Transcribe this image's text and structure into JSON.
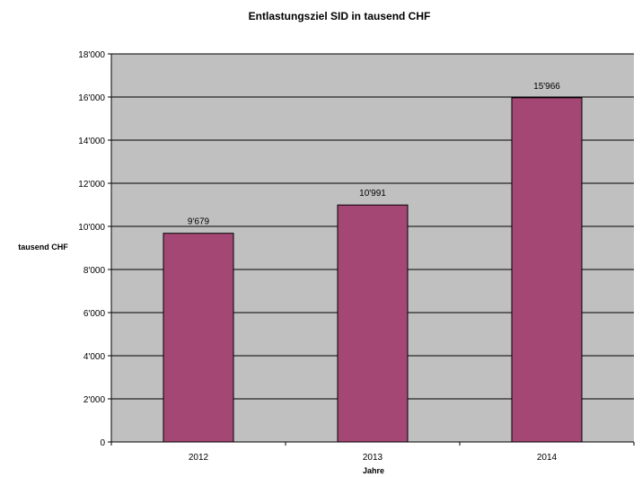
{
  "chart_data": {
    "type": "bar",
    "title": "Entlastungsziel SID in tausend CHF",
    "xlabel": "Jahre",
    "ylabel": "tausend CHF",
    "categories": [
      "2012",
      "2013",
      "2014"
    ],
    "values": [
      9679,
      10991,
      15966
    ],
    "data_labels": [
      "9'679",
      "10'991",
      "15'966"
    ],
    "y_ticks": [
      "0",
      "2'000",
      "4'000",
      "6'000",
      "8'000",
      "10'000",
      "12'000",
      "14'000",
      "16'000",
      "18'000"
    ],
    "ylim": [
      0,
      18000
    ],
    "y_tick_step": 2000,
    "grid": true,
    "legend": "none",
    "colors": {
      "bar": "#A54775",
      "plot_bg": "#C0C0C0",
      "grid": "#000000"
    }
  }
}
